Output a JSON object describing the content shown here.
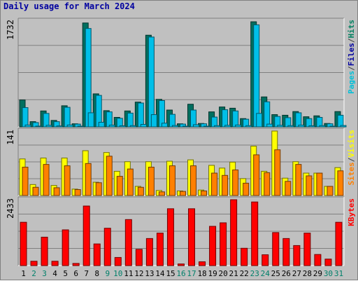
{
  "title": "Daily usage for March 2024",
  "chart_data": {
    "type": "bar",
    "categories": [
      "1",
      "2",
      "3",
      "4",
      "5",
      "6",
      "7",
      "8",
      "9",
      "10",
      "11",
      "12",
      "13",
      "14",
      "15",
      "16",
      "17",
      "18",
      "19",
      "20",
      "21",
      "22",
      "23",
      "24",
      "25",
      "26",
      "27",
      "28",
      "29",
      "30",
      "31"
    ],
    "weekend_days": [
      "2",
      "3",
      "9",
      "10",
      "16",
      "17",
      "23",
      "24",
      "30",
      "31"
    ],
    "panels": [
      {
        "id": "pages-files-hits",
        "max_label": "1732",
        "ymax": 1732,
        "legend": [
          {
            "text": "Pages",
            "color": "#00c0d8"
          },
          {
            "text": "/",
            "color": "#404040"
          },
          {
            "text": "Files",
            "color": "#0000a0"
          },
          {
            "text": "/",
            "color": "#404040"
          },
          {
            "text": "Hits",
            "color": "#008060"
          }
        ],
        "series": [
          {
            "name": "Hits",
            "color": "#006f5f",
            "values": [
              440,
              85,
              260,
              105,
              345,
              50,
              1700,
              540,
              265,
              155,
              260,
              405,
              1500,
              450,
              275,
              50,
              370,
              55,
              245,
              325,
              305,
              135,
              1720,
              490,
              200,
              190,
              250,
              165,
              180,
              55,
              250
            ]
          },
          {
            "name": "Files",
            "color": "#00bfe8",
            "values": [
              315,
              70,
              220,
              85,
              320,
              45,
              1610,
              515,
              245,
              140,
              225,
              390,
              1470,
              430,
              205,
              45,
              275,
              50,
              160,
              280,
              260,
              125,
              1670,
              410,
              170,
              150,
              230,
              135,
              155,
              50,
              190
            ]
          },
          {
            "name": "Pages",
            "color": "#00bfe8",
            "values": [
              30,
              12,
              25,
              15,
              30,
              10,
              230,
              75,
              28,
              18,
              20,
              40,
              200,
              60,
              22,
              8,
              35,
              8,
              20,
              25,
              30,
              20,
              220,
              45,
              25,
              20,
              28,
              18,
              20,
              10,
              22
            ]
          }
        ]
      },
      {
        "id": "visits-sites",
        "max_label": "141",
        "ymax": 141,
        "legend": [
          {
            "text": "Sites",
            "color": "#ff8000"
          },
          {
            "text": "/",
            "color": "#404040"
          },
          {
            "text": "Visits",
            "color": "#ffff00"
          }
        ],
        "series": [
          {
            "name": "Visits",
            "color": "#ffff00",
            "values": [
              80,
              24,
              82,
              22,
              82,
              14,
              98,
              29,
              94,
              53,
              74,
              20,
              74,
              11,
              75,
              10,
              78,
              12,
              66,
              60,
              73,
              37,
              108,
              53,
              141,
              38,
              74,
              49,
              49,
              20,
              61
            ]
          },
          {
            "name": "Sites",
            "color": "#ff8000",
            "values": [
              62,
              18,
              68,
              17,
              65,
              13,
              70,
              28,
              86,
              42,
              58,
              18,
              62,
              8,
              65,
              9,
              65,
              10,
              49,
              44,
              56,
              27,
              89,
              50,
              100,
              31,
              68,
              43,
              49,
              20,
              54
            ]
          }
        ]
      },
      {
        "id": "kbytes",
        "max_label": "2433",
        "ymax": 2433,
        "legend": [
          {
            "text": "KBytes",
            "color": "#ff0000"
          }
        ],
        "series": [
          {
            "name": "KBytes",
            "color": "#ff0000",
            "values": [
              1600,
              160,
              1050,
              160,
              1320,
              80,
              2200,
              800,
              1380,
              300,
              1700,
              600,
              1000,
              1200,
              2100,
              60,
              2100,
              140,
              1450,
              1580,
              2433,
              640,
              2350,
              400,
              1220,
              1000,
              740,
              1200,
              410,
              240,
              1600
            ]
          }
        ]
      }
    ]
  }
}
